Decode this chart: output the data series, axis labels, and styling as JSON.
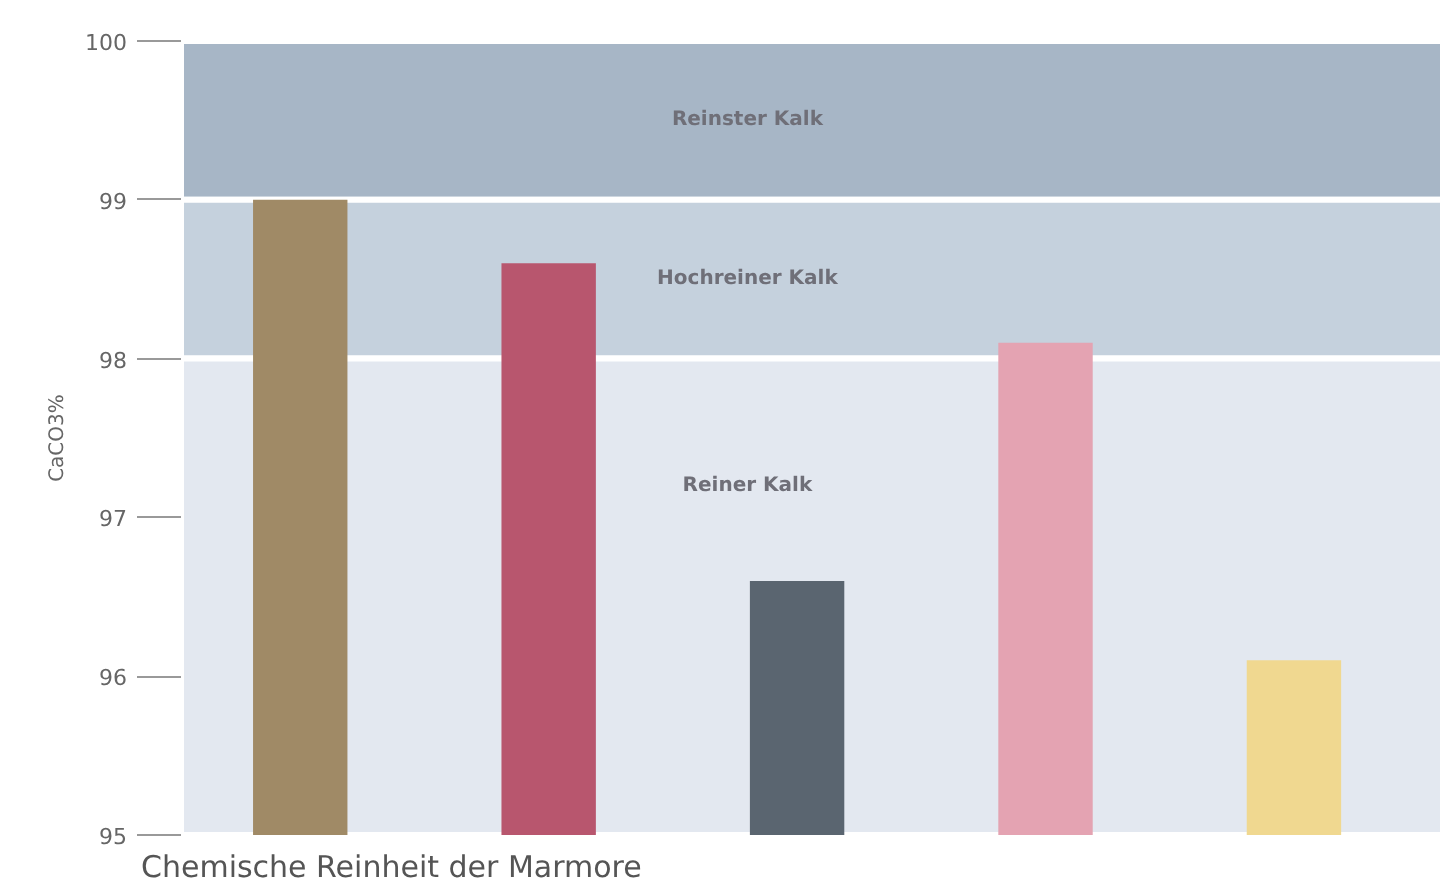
{
  "chart_data": {
    "type": "bar",
    "ylabel": "CaCO3%",
    "categories": [
      null,
      null,
      null,
      null,
      null
    ],
    "values": [
      99.0,
      98.6,
      96.6,
      98.1,
      96.1
    ],
    "colors": [
      "#a08a66",
      "#b8566e",
      "#5a6570",
      "#e4a3b2",
      "#f0d890"
    ],
    "ylim": [
      95,
      100
    ],
    "yticks": [
      95,
      96,
      97,
      98,
      99,
      100
    ],
    "bands": [
      {
        "axis": "y",
        "from": 99,
        "to": 100,
        "label": "Reinster Kalk",
        "color": "#a7b6c6"
      },
      {
        "axis": "y",
        "from": 98,
        "to": 99,
        "label": "Hochreiner Kalk",
        "color": "#c5d1dd"
      },
      {
        "axis": "y",
        "from": 95,
        "to": 98,
        "label": "Reiner Kalk",
        "color": "#e3e8f0"
      }
    ],
    "annotations": [
      "Chemische Reinheit der Marmore"
    ]
  }
}
